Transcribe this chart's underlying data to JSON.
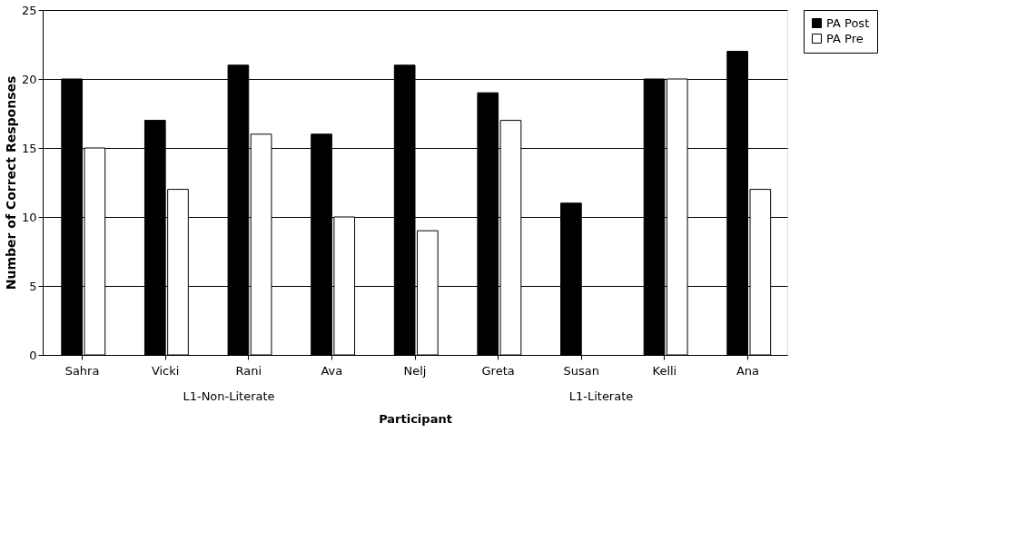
{
  "chart_data": {
    "type": "bar",
    "xlabel": "Participant",
    "ylabel": "Number of Correct Responses",
    "categories": [
      "Sahra",
      "Vicki",
      "Rani",
      "Ava",
      "Nelj",
      "Greta",
      "Susan",
      "Kelli",
      "Ana"
    ],
    "series": [
      {
        "name": "PA Post",
        "color": "#000000",
        "values": [
          20,
          17,
          21,
          16,
          21,
          19,
          11,
          20,
          22
        ]
      },
      {
        "name": "PA Pre",
        "color": "#ffffff",
        "values": [
          15,
          12,
          16,
          10,
          9,
          17,
          null,
          20,
          12
        ]
      }
    ],
    "ylim": [
      0,
      25
    ],
    "yticks": [
      0,
      5,
      10,
      15,
      20,
      25
    ],
    "grid": "y",
    "legend": "right",
    "annotations": [
      "L1-Non-Literate",
      "L1-Literate"
    ]
  }
}
